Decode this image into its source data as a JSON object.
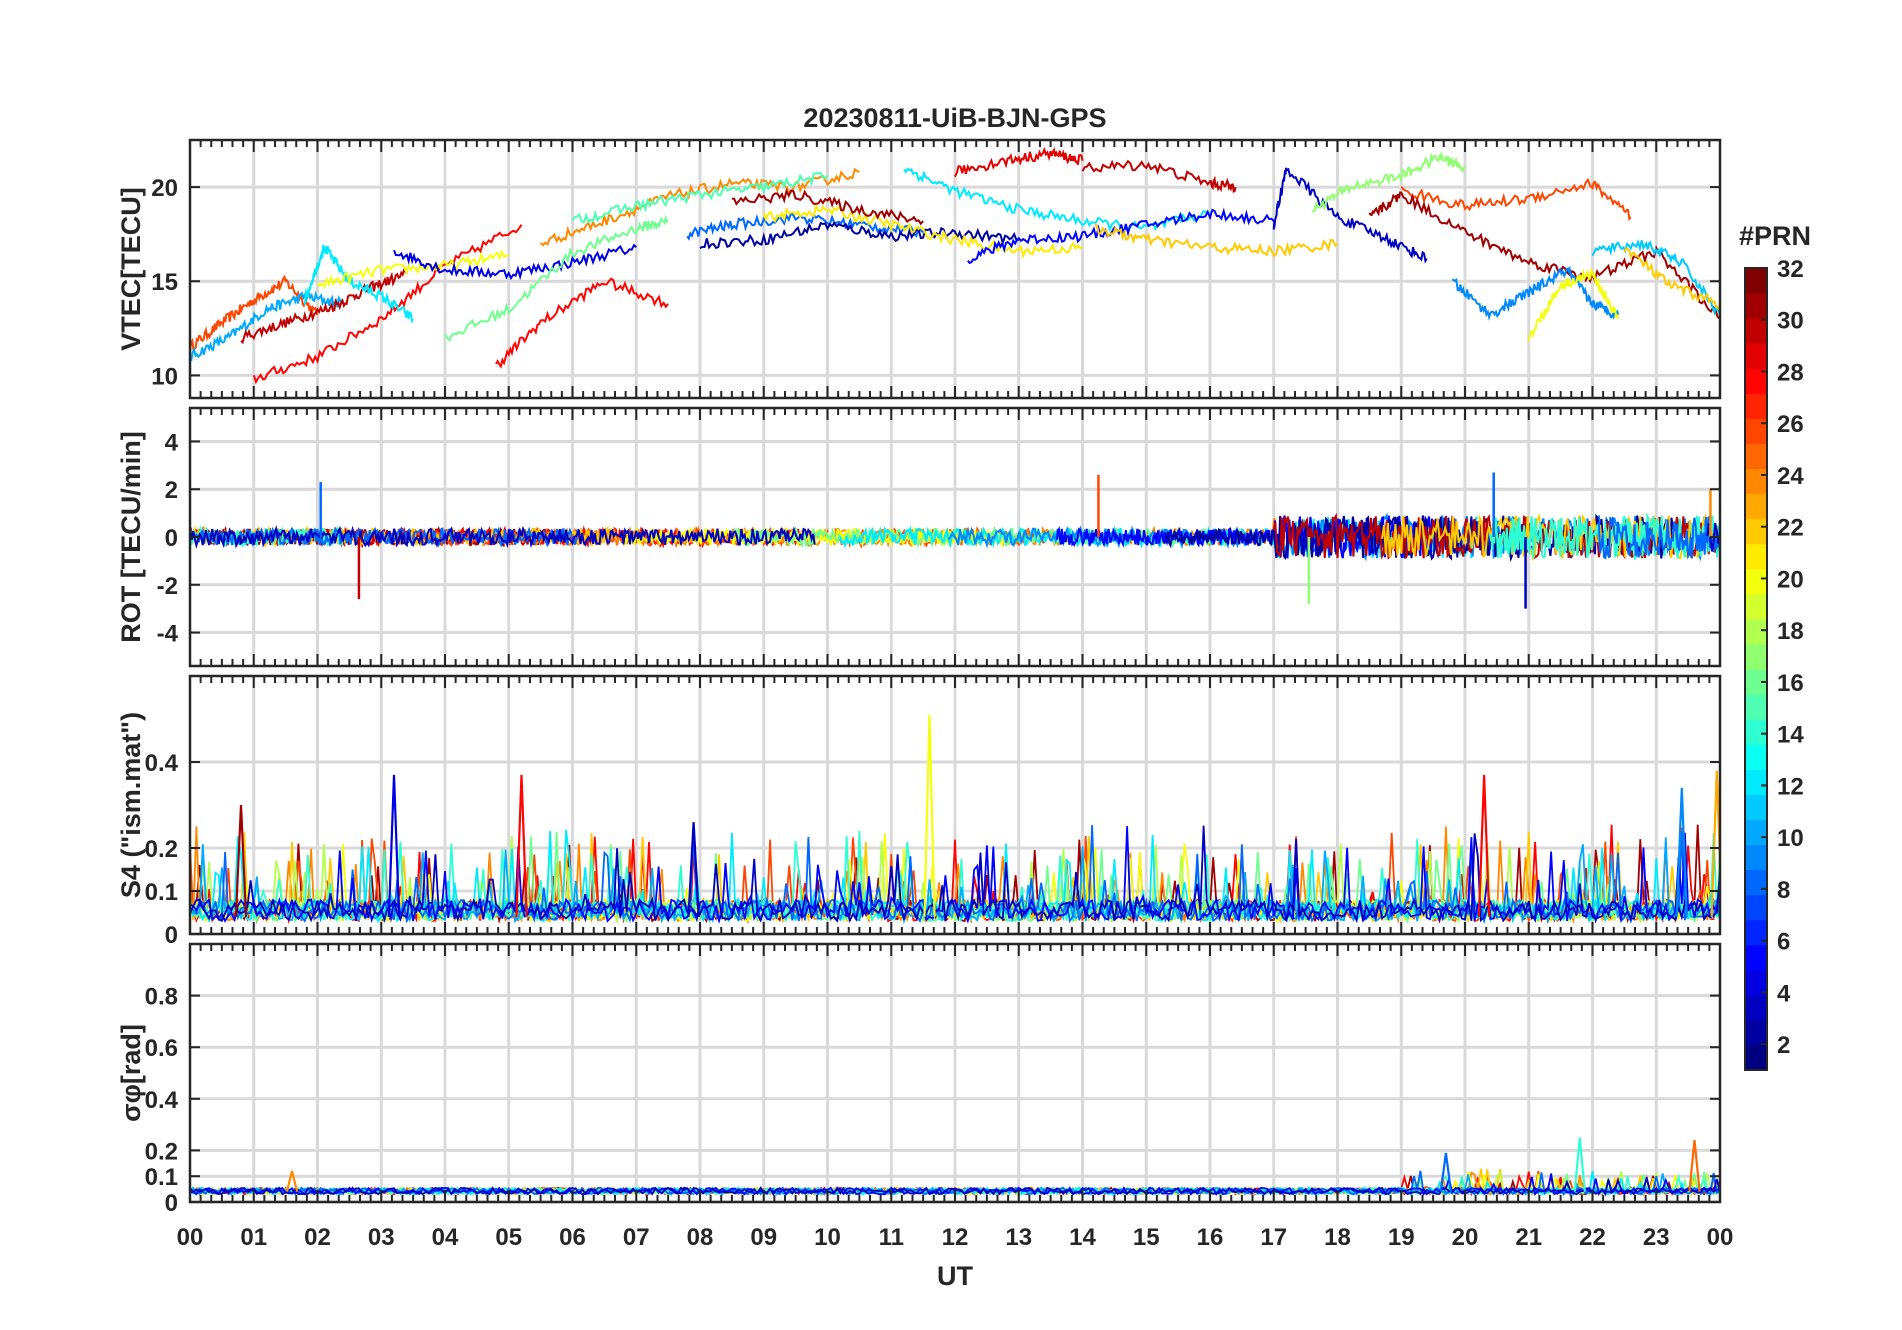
{
  "title": "20230811-UiB-BJN-GPS",
  "x_axis": {
    "label": "UT",
    "ticks": [
      "00",
      "01",
      "02",
      "03",
      "04",
      "05",
      "06",
      "07",
      "08",
      "09",
      "10",
      "11",
      "12",
      "13",
      "14",
      "15",
      "16",
      "17",
      "18",
      "19",
      "20",
      "21",
      "22",
      "23",
      "00"
    ],
    "range_hours": [
      0,
      24
    ]
  },
  "colorbar": {
    "title": "#PRN",
    "colormap": "jet",
    "range": [
      1,
      32
    ],
    "ticks": [
      "2",
      "4",
      "6",
      "8",
      "10",
      "12",
      "14",
      "16",
      "18",
      "20",
      "22",
      "24",
      "26",
      "28",
      "30",
      "32"
    ]
  },
  "chart_data": [
    {
      "type": "line",
      "panel": "vtec",
      "ylabel": "VTEC[TECU]",
      "ylim": [
        8.8,
        22.5
      ],
      "yticks": [
        10,
        15,
        20
      ],
      "grid": true,
      "series_note": "one line per GPS PRN, color by PRN",
      "series": [
        {
          "prn": 26,
          "x": [
            0.0,
            0.5,
            1.0,
            1.5,
            2.0
          ],
          "y": [
            11.5,
            12.8,
            14.0,
            15.0,
            13.2
          ]
        },
        {
          "prn": 10,
          "x": [
            0.0,
            0.6,
            1.2,
            1.8,
            2.4
          ],
          "y": [
            11.0,
            12.0,
            13.5,
            14.2,
            13.8
          ]
        },
        {
          "prn": 30,
          "x": [
            0.8,
            1.5,
            2.2,
            2.8,
            3.4
          ],
          "y": [
            12.0,
            12.8,
            13.6,
            14.6,
            15.4
          ]
        },
        {
          "prn": 28,
          "x": [
            1.0,
            2.0,
            3.0,
            4.0,
            5.2
          ],
          "y": [
            9.8,
            11.0,
            13.0,
            15.8,
            18.0
          ]
        },
        {
          "prn": 12,
          "x": [
            1.8,
            2.1,
            2.5,
            3.0,
            3.5
          ],
          "y": [
            14.0,
            16.8,
            15.0,
            14.2,
            13.0
          ]
        },
        {
          "prn": 20,
          "x": [
            2.0,
            3.0,
            4.0,
            5.0
          ],
          "y": [
            14.8,
            15.6,
            15.8,
            16.4
          ]
        },
        {
          "prn": 4,
          "x": [
            3.2,
            4.0,
            5.0,
            6.0,
            7.0
          ],
          "y": [
            16.6,
            15.6,
            15.4,
            16.0,
            16.8
          ]
        },
        {
          "prn": 28,
          "x": [
            4.8,
            5.5,
            6.5,
            7.5
          ],
          "y": [
            10.5,
            12.8,
            15.0,
            13.8
          ]
        },
        {
          "prn": 16,
          "x": [
            4.0,
            5.0,
            6.0,
            7.0,
            7.5
          ],
          "y": [
            12.0,
            13.5,
            16.5,
            17.8,
            18.2
          ]
        },
        {
          "prn": 24,
          "x": [
            5.5,
            6.5,
            7.5,
            8.5,
            9.5,
            10.5
          ],
          "y": [
            17.0,
            18.2,
            19.5,
            20.2,
            20.0,
            20.8
          ]
        },
        {
          "prn": 15,
          "x": [
            6.0,
            7.0,
            8.0,
            9.0,
            10.0
          ],
          "y": [
            18.2,
            19.0,
            19.6,
            20.0,
            20.6
          ]
        },
        {
          "prn": 8,
          "x": [
            7.8,
            8.5,
            9.5,
            10.5,
            11.5
          ],
          "y": [
            17.5,
            18.0,
            18.4,
            18.0,
            17.6
          ]
        },
        {
          "prn": 2,
          "x": [
            8.0,
            9.0,
            10.0,
            11.0,
            12.0,
            13.0
          ],
          "y": [
            17.0,
            17.2,
            18.0,
            17.4,
            17.6,
            17.2
          ]
        },
        {
          "prn": 21,
          "x": [
            9.0,
            10.0,
            11.0,
            12.0,
            13.0,
            14.0
          ],
          "y": [
            18.4,
            18.8,
            18.0,
            17.2,
            16.6,
            16.8
          ]
        },
        {
          "prn": 31,
          "x": [
            8.5,
            9.5,
            10.5,
            11.5
          ],
          "y": [
            19.2,
            19.6,
            18.8,
            18.2
          ]
        },
        {
          "prn": 12,
          "x": [
            11.2,
            12.0,
            13.0,
            14.0,
            15.0,
            16.0
          ],
          "y": [
            21.0,
            19.8,
            18.8,
            18.2,
            17.8,
            18.6
          ]
        },
        {
          "prn": 29,
          "x": [
            12.0,
            12.8,
            13.5,
            14.0
          ],
          "y": [
            20.8,
            21.4,
            21.8,
            21.4
          ]
        },
        {
          "prn": 30,
          "x": [
            14.0,
            15.0,
            16.0,
            16.4
          ],
          "y": [
            21.0,
            21.2,
            20.2,
            20.0
          ]
        },
        {
          "prn": 5,
          "x": [
            12.2,
            13.0,
            14.0,
            15.0,
            16.0,
            17.0
          ],
          "y": [
            16.2,
            17.2,
            17.4,
            18.0,
            18.6,
            18.2
          ]
        },
        {
          "prn": 22,
          "x": [
            14.2,
            15.0,
            16.0,
            17.0,
            18.0
          ],
          "y": [
            17.8,
            17.2,
            16.8,
            16.6,
            17.0
          ]
        },
        {
          "prn": 3,
          "x": [
            17.0,
            17.2,
            18.0,
            18.8,
            19.4
          ],
          "y": [
            18.0,
            21.0,
            18.4,
            17.2,
            16.2
          ]
        },
        {
          "prn": 17,
          "x": [
            17.6,
            18.2,
            19.0,
            19.6,
            20.0
          ],
          "y": [
            18.8,
            20.0,
            20.6,
            21.6,
            21.0
          ]
        },
        {
          "prn": 26,
          "x": [
            19.0,
            20.0,
            21.0,
            22.0,
            22.6
          ],
          "y": [
            19.8,
            19.0,
            19.4,
            20.2,
            18.4
          ]
        },
        {
          "prn": 31,
          "x": [
            18.5,
            19.0,
            20.0,
            21.0,
            22.0,
            23.0,
            24.0
          ],
          "y": [
            18.4,
            19.6,
            17.6,
            16.0,
            15.2,
            16.6,
            13.0
          ]
        },
        {
          "prn": 9,
          "x": [
            19.8,
            20.4,
            21.0,
            21.6,
            22.0,
            22.4
          ],
          "y": [
            15.0,
            13.2,
            14.4,
            15.6,
            13.8,
            13.2
          ]
        },
        {
          "prn": 20,
          "x": [
            21.0,
            21.5,
            22.0,
            22.4
          ],
          "y": [
            12.0,
            14.8,
            15.4,
            13.0
          ]
        },
        {
          "prn": 11,
          "x": [
            22.0,
            22.8,
            23.4,
            24.0
          ],
          "y": [
            16.6,
            17.0,
            16.0,
            13.2
          ]
        },
        {
          "prn": 22,
          "x": [
            22.5,
            23.2,
            24.0
          ],
          "y": [
            16.8,
            14.8,
            13.8
          ]
        }
      ]
    },
    {
      "type": "line",
      "panel": "rot",
      "ylabel": "ROT [TECU/min]",
      "ylim": [
        -5.4,
        5.4
      ],
      "yticks": [
        -4,
        -2,
        0,
        2,
        4
      ],
      "grid": true,
      "series_note": "rate of TEC; jittery lines around zero, one per PRN",
      "spikes": [
        {
          "prn": 26,
          "x": 14.25,
          "y": 2.6
        },
        {
          "prn": 30,
          "x": 2.65,
          "y": -2.6
        },
        {
          "prn": 8,
          "x": 2.05,
          "y": 2.3
        },
        {
          "prn": 3,
          "x": 20.95,
          "y": -3.0
        },
        {
          "prn": 17,
          "x": 17.55,
          "y": -2.8
        },
        {
          "prn": 8,
          "x": 20.45,
          "y": 2.7
        },
        {
          "prn": 24,
          "x": 23.85,
          "y": 2.0
        }
      ]
    },
    {
      "type": "line",
      "panel": "s4",
      "ylabel": "S4 (\"ism.mat\")",
      "ylim": [
        0,
        0.6
      ],
      "yticks": [
        0,
        0.1,
        0.2,
        0.4
      ],
      "grid": true,
      "series_note": "amplitude scintillation index, bursts per PRN",
      "peaks": [
        {
          "prn": 20,
          "x": 11.6,
          "y": 0.51
        },
        {
          "prn": 4,
          "x": 3.2,
          "y": 0.37
        },
        {
          "prn": 28,
          "x": 5.2,
          "y": 0.37
        },
        {
          "prn": 28,
          "x": 20.3,
          "y": 0.37
        },
        {
          "prn": 23,
          "x": 23.95,
          "y": 0.38
        },
        {
          "prn": 31,
          "x": 0.8,
          "y": 0.3
        },
        {
          "prn": 3,
          "x": 7.9,
          "y": 0.26
        },
        {
          "prn": 9,
          "x": 23.4,
          "y": 0.34
        }
      ]
    },
    {
      "type": "line",
      "panel": "sigma_phi",
      "ylabel": "σφ[rad]",
      "ylim": [
        0,
        1.0
      ],
      "yticks": [
        0,
        0.1,
        0.2,
        0.4,
        0.6,
        0.8
      ],
      "grid": true,
      "series_note": "phase scintillation index, low values",
      "peaks": [
        {
          "prn": 8,
          "x": 19.7,
          "y": 0.19
        },
        {
          "prn": 14,
          "x": 21.8,
          "y": 0.25
        },
        {
          "prn": 25,
          "x": 23.6,
          "y": 0.24
        },
        {
          "prn": 24,
          "x": 1.6,
          "y": 0.12
        }
      ]
    }
  ]
}
